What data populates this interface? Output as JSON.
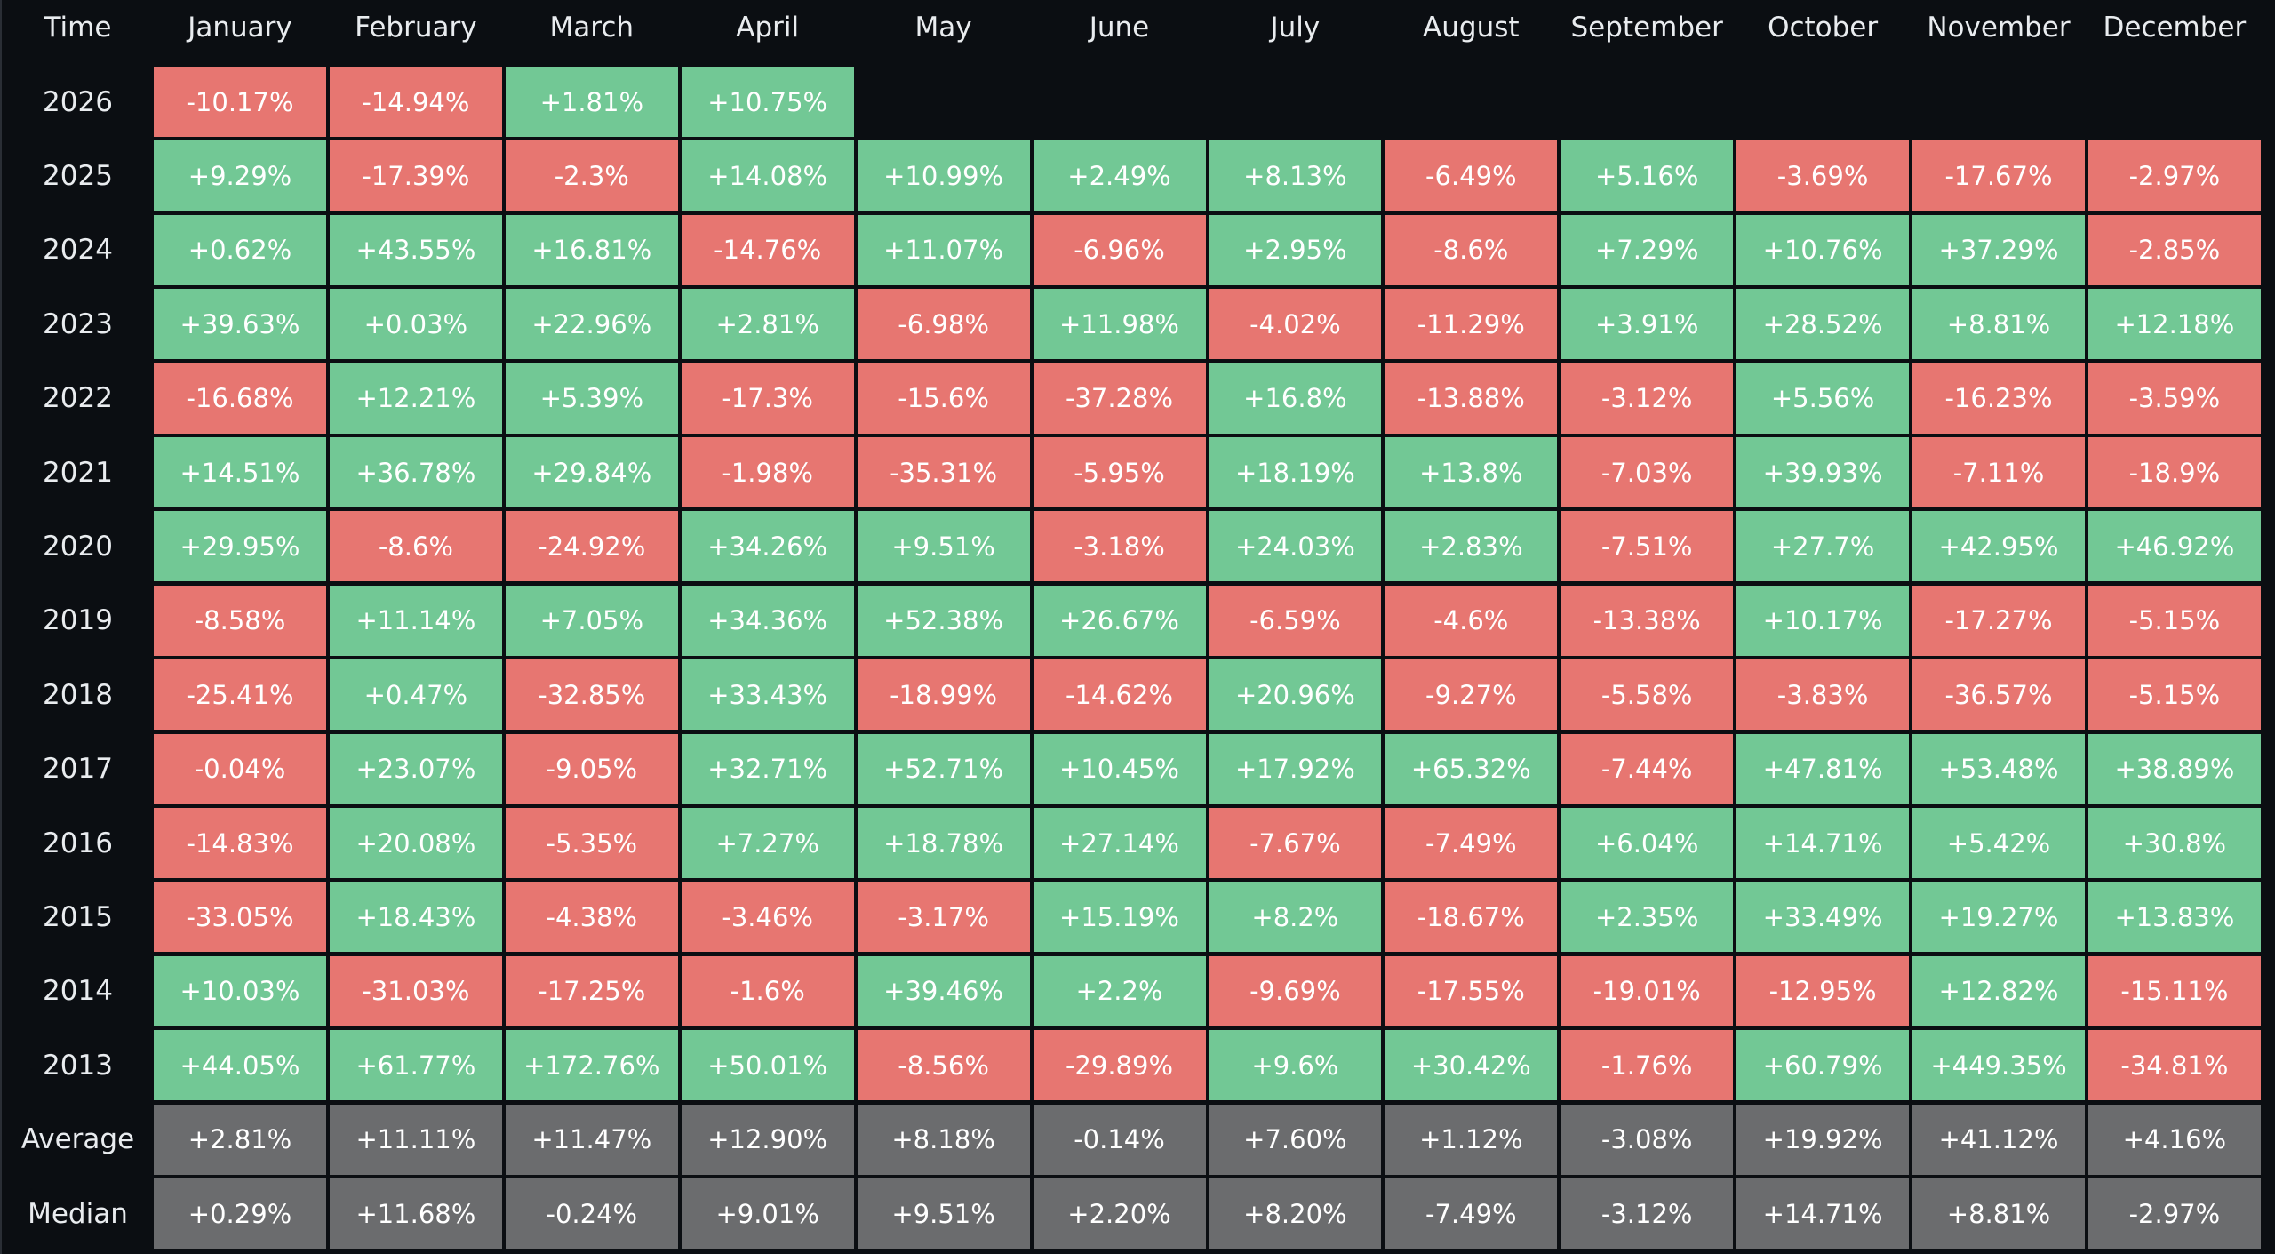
{
  "chart_data": {
    "type": "heatmap",
    "corner_label": "Time",
    "columns": [
      "January",
      "February",
      "March",
      "April",
      "May",
      "June",
      "July",
      "August",
      "September",
      "October",
      "November",
      "December"
    ],
    "rows": [
      {
        "label": "2026",
        "values": [
          "-10.17%",
          "-14.94%",
          "+1.81%",
          "+10.75%",
          "",
          "",
          "",
          "",
          "",
          "",
          "",
          ""
        ]
      },
      {
        "label": "2025",
        "values": [
          "+9.29%",
          "-17.39%",
          "-2.3%",
          "+14.08%",
          "+10.99%",
          "+2.49%",
          "+8.13%",
          "-6.49%",
          "+5.16%",
          "-3.69%",
          "-17.67%",
          "-2.97%"
        ]
      },
      {
        "label": "2024",
        "values": [
          "+0.62%",
          "+43.55%",
          "+16.81%",
          "-14.76%",
          "+11.07%",
          "-6.96%",
          "+2.95%",
          "-8.6%",
          "+7.29%",
          "+10.76%",
          "+37.29%",
          "-2.85%"
        ]
      },
      {
        "label": "2023",
        "values": [
          "+39.63%",
          "+0.03%",
          "+22.96%",
          "+2.81%",
          "-6.98%",
          "+11.98%",
          "-4.02%",
          "-11.29%",
          "+3.91%",
          "+28.52%",
          "+8.81%",
          "+12.18%"
        ]
      },
      {
        "label": "2022",
        "values": [
          "-16.68%",
          "+12.21%",
          "+5.39%",
          "-17.3%",
          "-15.6%",
          "-37.28%",
          "+16.8%",
          "-13.88%",
          "-3.12%",
          "+5.56%",
          "-16.23%",
          "-3.59%"
        ]
      },
      {
        "label": "2021",
        "values": [
          "+14.51%",
          "+36.78%",
          "+29.84%",
          "-1.98%",
          "-35.31%",
          "-5.95%",
          "+18.19%",
          "+13.8%",
          "-7.03%",
          "+39.93%",
          "-7.11%",
          "-18.9%"
        ]
      },
      {
        "label": "2020",
        "values": [
          "+29.95%",
          "-8.6%",
          "-24.92%",
          "+34.26%",
          "+9.51%",
          "-3.18%",
          "+24.03%",
          "+2.83%",
          "-7.51%",
          "+27.7%",
          "+42.95%",
          "+46.92%"
        ]
      },
      {
        "label": "2019",
        "values": [
          "-8.58%",
          "+11.14%",
          "+7.05%",
          "+34.36%",
          "+52.38%",
          "+26.67%",
          "-6.59%",
          "-4.6%",
          "-13.38%",
          "+10.17%",
          "-17.27%",
          "-5.15%"
        ]
      },
      {
        "label": "2018",
        "values": [
          "-25.41%",
          "+0.47%",
          "-32.85%",
          "+33.43%",
          "-18.99%",
          "-14.62%",
          "+20.96%",
          "-9.27%",
          "-5.58%",
          "-3.83%",
          "-36.57%",
          "-5.15%"
        ]
      },
      {
        "label": "2017",
        "values": [
          "-0.04%",
          "+23.07%",
          "-9.05%",
          "+32.71%",
          "+52.71%",
          "+10.45%",
          "+17.92%",
          "+65.32%",
          "-7.44%",
          "+47.81%",
          "+53.48%",
          "+38.89%"
        ]
      },
      {
        "label": "2016",
        "values": [
          "-14.83%",
          "+20.08%",
          "-5.35%",
          "+7.27%",
          "+18.78%",
          "+27.14%",
          "-7.67%",
          "-7.49%",
          "+6.04%",
          "+14.71%",
          "+5.42%",
          "+30.8%"
        ]
      },
      {
        "label": "2015",
        "values": [
          "-33.05%",
          "+18.43%",
          "-4.38%",
          "-3.46%",
          "-3.17%",
          "+15.19%",
          "+8.2%",
          "-18.67%",
          "+2.35%",
          "+33.49%",
          "+19.27%",
          "+13.83%"
        ]
      },
      {
        "label": "2014",
        "values": [
          "+10.03%",
          "-31.03%",
          "-17.25%",
          "-1.6%",
          "+39.46%",
          "+2.2%",
          "-9.69%",
          "-17.55%",
          "-19.01%",
          "-12.95%",
          "+12.82%",
          "-15.11%"
        ]
      },
      {
        "label": "2013",
        "values": [
          "+44.05%",
          "+61.77%",
          "+172.76%",
          "+50.01%",
          "-8.56%",
          "-29.89%",
          "+9.6%",
          "+30.42%",
          "-1.76%",
          "+60.79%",
          "+449.35%",
          "-34.81%"
        ]
      }
    ],
    "summary_rows": [
      {
        "label": "Average",
        "values": [
          "+2.81%",
          "+11.11%",
          "+11.47%",
          "+12.90%",
          "+8.18%",
          "-0.14%",
          "+7.60%",
          "+1.12%",
          "-3.08%",
          "+19.92%",
          "+41.12%",
          "+4.16%"
        ]
      },
      {
        "label": "Median",
        "values": [
          "+0.29%",
          "+11.68%",
          "-0.24%",
          "+9.01%",
          "+9.51%",
          "+2.20%",
          "+8.20%",
          "-7.49%",
          "-3.12%",
          "+14.71%",
          "+8.81%",
          "-2.97%"
        ]
      }
    ],
    "colors": {
      "background": "#0b0e12",
      "positive": "#72c895",
      "negative": "#e77671",
      "summary": "#6b6c6e",
      "text": "#ffffff",
      "header_text": "#e9ecef"
    }
  }
}
